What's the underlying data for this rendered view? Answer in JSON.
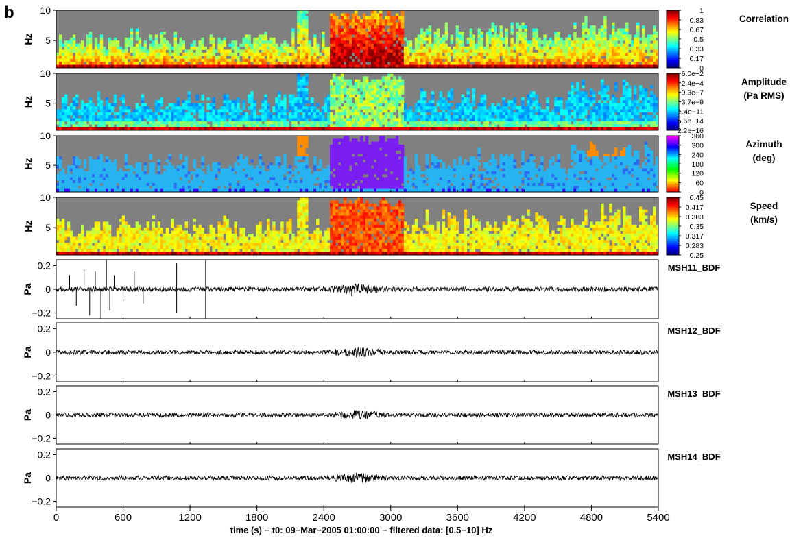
{
  "panel_letter": "b",
  "colors": {
    "nodata_gray": "#808080",
    "background": "#ffffff",
    "trace": "#000000",
    "azimuth_blue": "#27b4f0",
    "azimuth_purple": "#7a1df2",
    "azimuth_orange": "#ff8c00"
  },
  "chart_data": [
    {
      "type": "heatmap",
      "title": "Correlation",
      "ylabel": "Hz",
      "y_ticks": [
        "10",
        "5"
      ],
      "ylim": [
        0.5,
        10
      ],
      "colorbar_ticks": [
        "1",
        "0.83",
        "0.67",
        "0.5",
        "0.33",
        "0.17",
        "0"
      ],
      "colormap": "jet",
      "gray_means": "no detection"
    },
    {
      "type": "heatmap",
      "title": "Amplitude (Pa RMS)",
      "title_lines": [
        "Amplitude",
        "(Pa RMS)"
      ],
      "ylabel": "Hz",
      "y_ticks": [
        "10",
        "5"
      ],
      "ylim": [
        0.5,
        10
      ],
      "colorbar_ticks": [
        "6.0e−2",
        "2.4e−4",
        "9.3e−7",
        "3.7e−9",
        "1.4e−11",
        "5.6e−14",
        "2.2e−16"
      ],
      "colormap": "jet"
    },
    {
      "type": "heatmap",
      "title": "Azimuth (deg)",
      "title_lines": [
        "Azimuth",
        "(deg)"
      ],
      "ylabel": "Hz",
      "y_ticks": [
        "10",
        "5"
      ],
      "ylim": [
        0.5,
        10
      ],
      "colorbar_ticks": [
        "360",
        "300",
        "240",
        "180",
        "120",
        "60",
        "0"
      ],
      "colormap": "hsv"
    },
    {
      "type": "heatmap",
      "title": "Speed (km/s)",
      "title_lines": [
        "Speed",
        "(km/s)"
      ],
      "ylabel": "Hz",
      "y_ticks": [
        "10",
        "5"
      ],
      "ylim": [
        0.5,
        10
      ],
      "colorbar_ticks": [
        "0.45",
        "0.417",
        "0.383",
        "0.35",
        "0.317",
        "0.283",
        "0.25"
      ],
      "colormap": "jet"
    },
    {
      "type": "line",
      "station": "MSH11_BDF",
      "ylabel": "Pa",
      "y_ticks": [
        "0.2",
        "0",
        "−0.2"
      ],
      "ylim": [
        -0.25,
        0.25
      ],
      "noise_amplitude": 0.02,
      "burst": {
        "x": [
          2400,
          3000
        ],
        "amplitude": 0.05
      },
      "spikes": [
        {
          "x": 120,
          "y": 0.12
        },
        {
          "x": 180,
          "y": -0.14
        },
        {
          "x": 250,
          "y": 0.17
        },
        {
          "x": 300,
          "y": -0.22
        },
        {
          "x": 350,
          "y": 0.15
        },
        {
          "x": 400,
          "y": -0.25
        },
        {
          "x": 450,
          "y": 0.25
        },
        {
          "x": 480,
          "y": -0.18
        },
        {
          "x": 520,
          "y": 0.12
        },
        {
          "x": 600,
          "y": -0.1
        },
        {
          "x": 700,
          "y": 0.15
        },
        {
          "x": 780,
          "y": -0.12
        },
        {
          "x": 1080,
          "y": 0.22
        },
        {
          "x": 1080,
          "y": -0.2
        },
        {
          "x": 1340,
          "y": 0.25
        },
        {
          "x": 1340,
          "y": -0.25
        },
        {
          "x": 2650,
          "y": -0.06
        }
      ]
    },
    {
      "type": "line",
      "station": "MSH12_BDF",
      "ylabel": "Pa",
      "y_ticks": [
        "0.2",
        "0",
        "−0.2"
      ],
      "ylim": [
        -0.25,
        0.25
      ],
      "noise_amplitude": 0.018,
      "burst": {
        "x": [
          2400,
          3000
        ],
        "amplitude": 0.045
      }
    },
    {
      "type": "line",
      "station": "MSH13_BDF",
      "ylabel": "Pa",
      "y_ticks": [
        "0.2",
        "0",
        "−0.2"
      ],
      "ylim": [
        -0.25,
        0.25
      ],
      "noise_amplitude": 0.018,
      "burst": {
        "x": [
          2400,
          3000
        ],
        "amplitude": 0.045
      }
    },
    {
      "type": "line",
      "station": "MSH14_BDF",
      "ylabel": "Pa",
      "y_ticks": [
        "0.2",
        "0",
        "−0.2"
      ],
      "ylim": [
        -0.25,
        0.25
      ],
      "noise_amplitude": 0.02,
      "burst": {
        "x": [
          2400,
          3000
        ],
        "amplitude": 0.05
      }
    }
  ],
  "x_axis": {
    "xlim": [
      0,
      5400
    ],
    "ticks": [
      0,
      600,
      1200,
      1800,
      2400,
      3000,
      3600,
      4200,
      4800,
      5400
    ],
    "xlabel": "time (s) − t0: 09−Mar−2005 01:00:00 − filtered data: [0.5−10] Hz"
  }
}
